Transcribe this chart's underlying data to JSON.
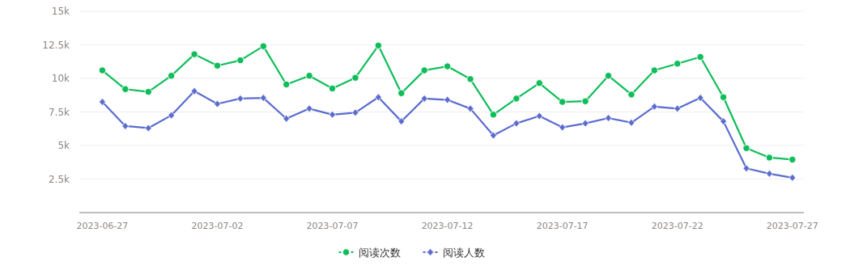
{
  "chart_data": {
    "type": "line",
    "x": [
      "2023-06-27",
      "2023-06-28",
      "2023-06-29",
      "2023-06-30",
      "2023-07-01",
      "2023-07-02",
      "2023-07-03",
      "2023-07-04",
      "2023-07-05",
      "2023-07-06",
      "2023-07-07",
      "2023-07-08",
      "2023-07-09",
      "2023-07-10",
      "2023-07-11",
      "2023-07-12",
      "2023-07-13",
      "2023-07-14",
      "2023-07-15",
      "2023-07-16",
      "2023-07-17",
      "2023-07-18",
      "2023-07-19",
      "2023-07-20",
      "2023-07-21",
      "2023-07-22",
      "2023-07-23",
      "2023-07-24",
      "2023-07-25",
      "2023-07-26",
      "2023-07-27"
    ],
    "series": [
      {
        "name": "阅读次数",
        "color": "#0fbe5a",
        "marker": "circle",
        "values": [
          10600,
          9200,
          9000,
          10200,
          11800,
          10950,
          11350,
          12400,
          9550,
          10200,
          9250,
          10050,
          12450,
          8900,
          10600,
          10900,
          9950,
          7300,
          8500,
          9650,
          8250,
          8300,
          10200,
          8800,
          10600,
          11100,
          11600,
          8600,
          4800,
          4100,
          3950
        ]
      },
      {
        "name": "阅读人数",
        "color": "#5b6ccf",
        "marker": "diamond",
        "values": [
          8250,
          6450,
          6300,
          7250,
          9050,
          8100,
          8500,
          8550,
          7000,
          7750,
          7300,
          7450,
          8600,
          6800,
          8500,
          8400,
          7750,
          5750,
          6650,
          7200,
          6350,
          6650,
          7050,
          6700,
          7900,
          7750,
          8550,
          6800,
          3300,
          2900,
          2600
        ]
      }
    ],
    "xlim": [
      "2023-06-26",
      "2023-07-27T12:00"
    ],
    "xticks": [
      "2023-06-27",
      "2023-07-02",
      "2023-07-07",
      "2023-07-12",
      "2023-07-17",
      "2023-07-22",
      "2023-07-27"
    ],
    "ylim": [
      0,
      15000
    ],
    "yticks": [
      {
        "value": 2500,
        "label": "2.5k"
      },
      {
        "value": 5000,
        "label": "5k"
      },
      {
        "value": 7500,
        "label": "7.5k"
      },
      {
        "value": 10000,
        "label": "10k"
      },
      {
        "value": 12500,
        "label": "12.5k"
      },
      {
        "value": 15000,
        "label": "15k"
      }
    ],
    "grid": "y",
    "legend": "bottom",
    "line_style": "solid"
  }
}
